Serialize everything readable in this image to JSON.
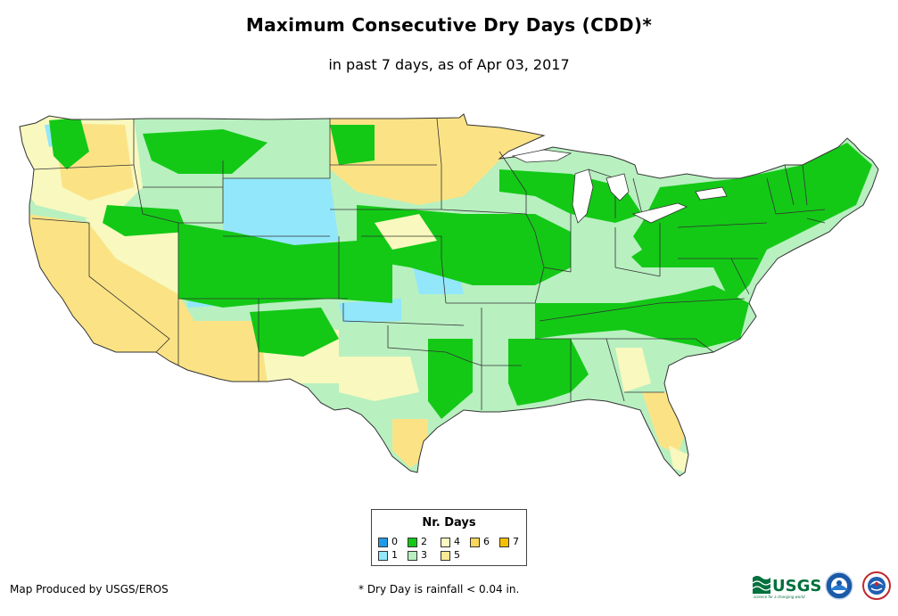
{
  "title": "Maximum Consecutive Dry Days (CDD)*",
  "subtitle": "in past 7 days, as of Apr 03, 2017",
  "legend": {
    "title": "Nr. Days",
    "items": [
      {
        "label": "0",
        "color": "#1f9bea"
      },
      {
        "label": "1",
        "color": "#93e7fb"
      },
      {
        "label": "2",
        "color": "#13c916"
      },
      {
        "label": "3",
        "color": "#b8f0c0"
      },
      {
        "label": "4",
        "color": "#f8f8bf"
      },
      {
        "label": "5",
        "color": "#fbea93"
      },
      {
        "label": "6",
        "color": "#fbd65d"
      },
      {
        "label": "7",
        "color": "#f5bf02"
      }
    ]
  },
  "footer": {
    "credit": "Map Produced by USGS/EROS",
    "footnote": "* Dry Day is rainfall < 0.04 in."
  },
  "logos": {
    "usgs": "USGS",
    "usgs_tagline": "science for a changing world"
  }
}
